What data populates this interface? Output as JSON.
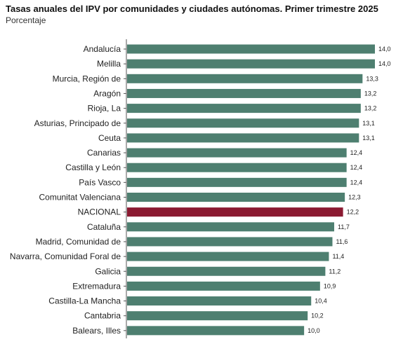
{
  "chart_data": {
    "type": "bar",
    "orientation": "horizontal",
    "title": "Tasas anuales del IPV por comunidades y ciudades autónomas. Primer trimestre 2025",
    "subtitle": "Porcentaje",
    "categories": [
      "Andalucía",
      "Melilla",
      "Murcia, Región de",
      "Aragón",
      "Rioja, La",
      "Asturias, Principado de",
      "Ceuta",
      "Canarias",
      "Castilla y León",
      "País Vasco",
      "Comunitat Valenciana",
      "NACIONAL",
      "Cataluña",
      "Madrid, Comunidad de",
      "Navarra, Comunidad Foral de",
      "Galicia",
      "Extremadura",
      "Castilla-La Mancha",
      "Cantabria",
      "Balears, Illes"
    ],
    "values": [
      14.0,
      14.0,
      13.3,
      13.2,
      13.2,
      13.1,
      13.1,
      12.4,
      12.4,
      12.4,
      12.3,
      12.2,
      11.7,
      11.6,
      11.4,
      11.2,
      10.9,
      10.4,
      10.2,
      10.0
    ],
    "value_labels": [
      "14,0",
      "14,0",
      "13,3",
      "13,2",
      "13,2",
      "13,1",
      "13,1",
      "12,4",
      "12,4",
      "12,4",
      "12,3",
      "12,2",
      "11,7",
      "11,6",
      "11,4",
      "11,2",
      "10,9",
      "10,4",
      "10,2",
      "10,0"
    ],
    "highlight_category": "NACIONAL",
    "xlim": [
      0,
      14.0
    ],
    "grid": false,
    "colors": {
      "bar": "#4e7f70",
      "highlight": "#8b1a32",
      "axis": "#555555"
    }
  }
}
